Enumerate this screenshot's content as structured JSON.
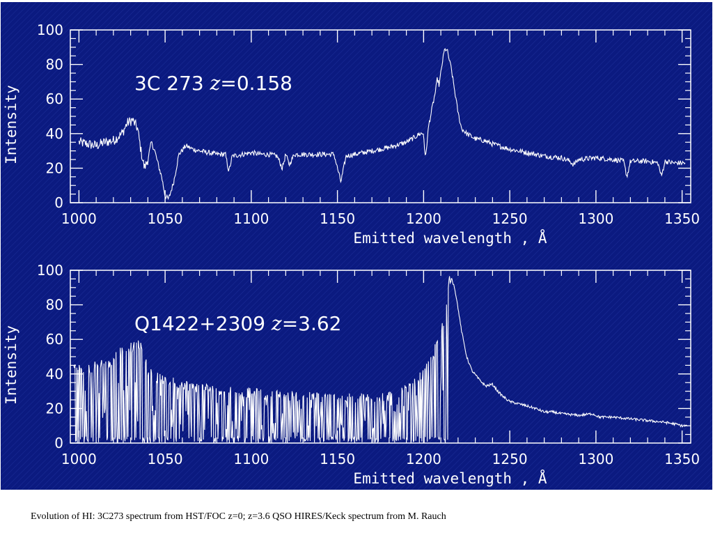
{
  "chart_data": [
    {
      "type": "line",
      "title_object": "3C 273",
      "title_z_symbol": "z",
      "title_z_value": "=0.158",
      "xlabel": "Emitted wavelength , Å",
      "ylabel": "Intensity",
      "xlim": [
        995,
        1355
      ],
      "ylim": [
        0,
        100
      ],
      "xticks": [
        1000,
        1050,
        1100,
        1150,
        1200,
        1250,
        1300,
        1350
      ],
      "yticks": [
        0,
        20,
        40,
        60,
        80,
        100
      ],
      "series": [
        {
          "x": [
            1000,
            1005,
            1010,
            1015,
            1020,
            1025,
            1028,
            1031,
            1034,
            1036,
            1038,
            1040,
            1042,
            1044,
            1046,
            1048,
            1050,
            1052,
            1055,
            1058,
            1062,
            1066,
            1070,
            1075,
            1080,
            1085,
            1087,
            1089,
            1095,
            1100,
            1105,
            1110,
            1115,
            1118,
            1120,
            1122,
            1125,
            1130,
            1140,
            1148,
            1150,
            1152,
            1155,
            1160,
            1170,
            1180,
            1190,
            1195,
            1198,
            1200,
            1201,
            1202,
            1203,
            1205,
            1207,
            1208,
            1209,
            1210,
            1211,
            1212,
            1213,
            1214,
            1215,
            1216,
            1218,
            1220,
            1222,
            1225,
            1230,
            1235,
            1240,
            1250,
            1260,
            1270,
            1280,
            1285,
            1287,
            1290,
            1300,
            1310,
            1316,
            1318,
            1320,
            1330,
            1336,
            1338,
            1340,
            1345,
            1352
          ],
          "y": [
            35,
            34,
            33,
            35,
            36,
            40,
            46,
            48,
            43,
            30,
            20,
            25,
            35,
            30,
            22,
            15,
            4,
            2,
            12,
            28,
            33,
            31,
            30,
            29,
            28,
            28,
            18,
            27,
            28,
            29,
            28,
            28,
            27,
            20,
            28,
            22,
            28,
            28,
            28,
            28,
            20,
            12,
            27,
            28,
            30,
            32,
            35,
            38,
            40,
            40,
            25,
            35,
            45,
            55,
            65,
            72,
            68,
            75,
            82,
            88,
            89,
            87,
            82,
            78,
            65,
            52,
            43,
            40,
            37,
            36,
            34,
            31,
            29,
            27,
            26,
            24,
            22,
            25,
            26,
            25,
            24,
            15,
            24,
            24,
            23,
            15,
            24,
            23,
            23
          ]
        }
      ]
    },
    {
      "type": "line",
      "title_object": "Q1422+2309",
      "title_z_symbol": "z",
      "title_z_value": "=3.62",
      "xlabel": "Emitted wavelength , Å",
      "ylabel": "Intensity",
      "xlim": [
        995,
        1355
      ],
      "ylim": [
        0,
        100
      ],
      "xticks": [
        1000,
        1050,
        1100,
        1150,
        1200,
        1250,
        1300,
        1350
      ],
      "yticks": [
        0,
        20,
        40,
        60,
        80,
        100
      ],
      "forest_range": [
        997,
        1216
      ],
      "series": [
        {
          "x": [
            997,
            1005,
            1012,
            1018,
            1022,
            1025,
            1028,
            1031,
            1034,
            1037,
            1040,
            1045,
            1055,
            1070,
            1090,
            1110,
            1130,
            1150,
            1170,
            1185,
            1192,
            1196,
            1200,
            1203,
            1206,
            1208,
            1210,
            1212,
            1213,
            1214,
            1215,
            1216,
            1218,
            1220,
            1222,
            1225,
            1228,
            1232,
            1236,
            1240,
            1243,
            1246,
            1250,
            1258,
            1265,
            1270,
            1275,
            1280,
            1290,
            1298,
            1302,
            1310,
            1320,
            1330,
            1340,
            1346,
            1350,
            1353
          ],
          "y": [
            44,
            42,
            46,
            45,
            52,
            54,
            56,
            55,
            57,
            56,
            42,
            38,
            35,
            32,
            30,
            28,
            27,
            26,
            26,
            28,
            32,
            36,
            40,
            45,
            52,
            60,
            65,
            70,
            80,
            88,
            95,
            96,
            90,
            78,
            65,
            50,
            42,
            37,
            33,
            34,
            30,
            27,
            24,
            22,
            20,
            18,
            18,
            17,
            16,
            17,
            15,
            15,
            14,
            13,
            12,
            11,
            10,
            10
          ]
        }
      ]
    }
  ],
  "caption": "Evolution of HI: 3C273 spectrum from HST/FOC z=0;  z=3.6 QSO HIRES/Keck spectrum from M. Rauch",
  "colors": {
    "background": "#0b1a80",
    "foreground": "#ffffff"
  }
}
